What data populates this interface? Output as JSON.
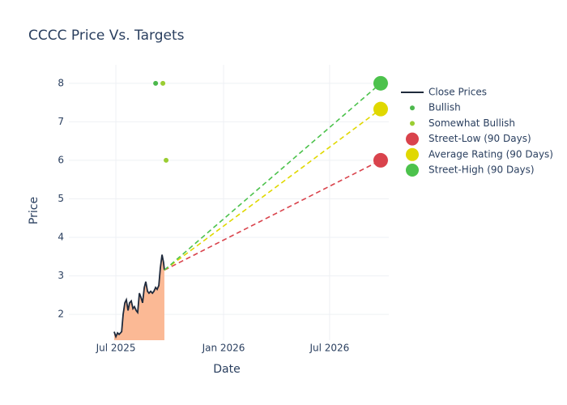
{
  "chart_data": {
    "type": "line",
    "title": "CCCC Price Vs. Targets",
    "x_label": "Date",
    "y_label": "Price",
    "xlim": [
      2025.276,
      2026.773
    ],
    "ylim": [
      1.33,
      8.48
    ],
    "xticks": [
      {
        "value": 2025.496,
        "label": "Jul 2025"
      },
      {
        "value": 2026.0,
        "label": "Jan 2026"
      },
      {
        "value": 2026.496,
        "label": "Jul 2026"
      }
    ],
    "yticks": [
      2,
      3,
      4,
      5,
      6,
      7,
      8
    ],
    "grid": true,
    "legend": "right",
    "series": [
      {
        "name": "Close Prices",
        "color": "#1f2a3c",
        "fill": "#fbb995",
        "mode": "area",
        "x": [
          2025.488,
          2025.496,
          2025.504,
          2025.511,
          2025.523,
          2025.53,
          2025.538,
          2025.545,
          2025.553,
          2025.56,
          2025.568,
          2025.576,
          2025.583,
          2025.591,
          2025.598,
          2025.606,
          2025.613,
          2025.621,
          2025.629,
          2025.636,
          2025.644,
          2025.651,
          2025.659,
          2025.667,
          2025.674,
          2025.682,
          2025.689,
          2025.697,
          2025.704,
          2025.712,
          2025.719,
          2025.723
        ],
        "values": [
          1.55,
          1.42,
          1.52,
          1.48,
          1.55,
          2.0,
          2.3,
          2.38,
          2.1,
          2.3,
          2.35,
          2.15,
          2.2,
          2.1,
          2.05,
          2.55,
          2.45,
          2.3,
          2.7,
          2.85,
          2.6,
          2.55,
          2.6,
          2.55,
          2.6,
          2.7,
          2.65,
          2.75,
          3.2,
          3.55,
          3.35,
          3.15
        ]
      },
      {
        "name": "Bullish",
        "color": "#4cb84c",
        "mode": "markers",
        "x": [
          2025.682
        ],
        "values": [
          8
        ]
      },
      {
        "name": "Somewhat Bullish",
        "color": "#9acd32",
        "mode": "markers",
        "x": [
          2025.716,
          2025.731
        ],
        "values": [
          8,
          6
        ]
      },
      {
        "name": "Street-Low (90 Days)",
        "color": "#d9434c",
        "mode": "target",
        "x": [
          2025.723,
          2026.735
        ],
        "values": [
          3.15,
          6
        ]
      },
      {
        "name": "Average Rating (90 Days)",
        "color": "#e0d800",
        "mode": "target",
        "x": [
          2025.723,
          2026.735
        ],
        "values": [
          3.15,
          7.33
        ]
      },
      {
        "name": "Street-High (90 Days)",
        "color": "#4cc24c",
        "mode": "target",
        "x": [
          2025.723,
          2026.735
        ],
        "values": [
          3.15,
          8
        ]
      }
    ]
  }
}
